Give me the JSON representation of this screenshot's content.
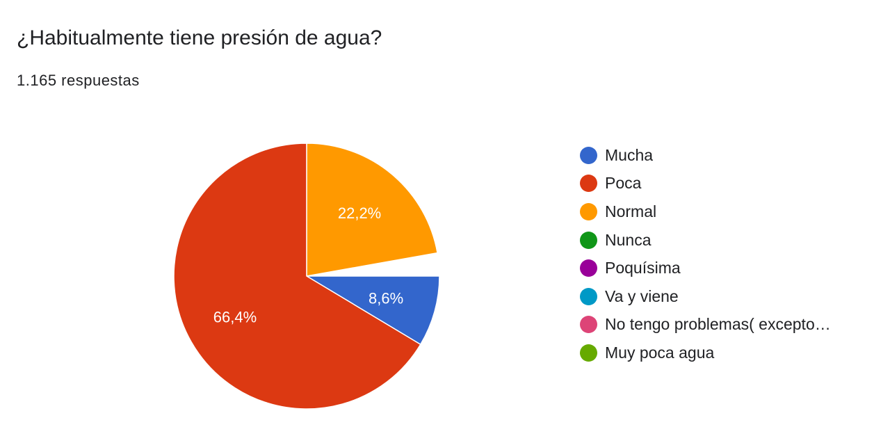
{
  "chart_data": {
    "type": "pie",
    "title": "¿Habitualmente tiene presión de agua?",
    "subtitle": "1.165 respuestas",
    "legend_position": "right",
    "start_angle_deg": 0,
    "slices": [
      {
        "label": "Mucha",
        "value": 8.6,
        "display": "8,6%",
        "color": "#3366cc"
      },
      {
        "label": "Poca",
        "value": 66.4,
        "display": "66,4%",
        "color": "#dc3912"
      },
      {
        "label": "Normal",
        "value": 22.2,
        "display": "22,2%",
        "color": "#ff9900"
      },
      {
        "label": "Nunca",
        "value": null,
        "color": "#109618"
      },
      {
        "label": "Poquísima",
        "value": null,
        "color": "#990099"
      },
      {
        "label": "Va y viene",
        "value": null,
        "color": "#0099c6"
      },
      {
        "label": "No tengo problemas( excepto…",
        "value": null,
        "color": "#dd4477"
      },
      {
        "label": "Muy poca agua",
        "value": null,
        "color": "#66aa00"
      }
    ],
    "unlabeled_remainder_percent": 2.8
  }
}
